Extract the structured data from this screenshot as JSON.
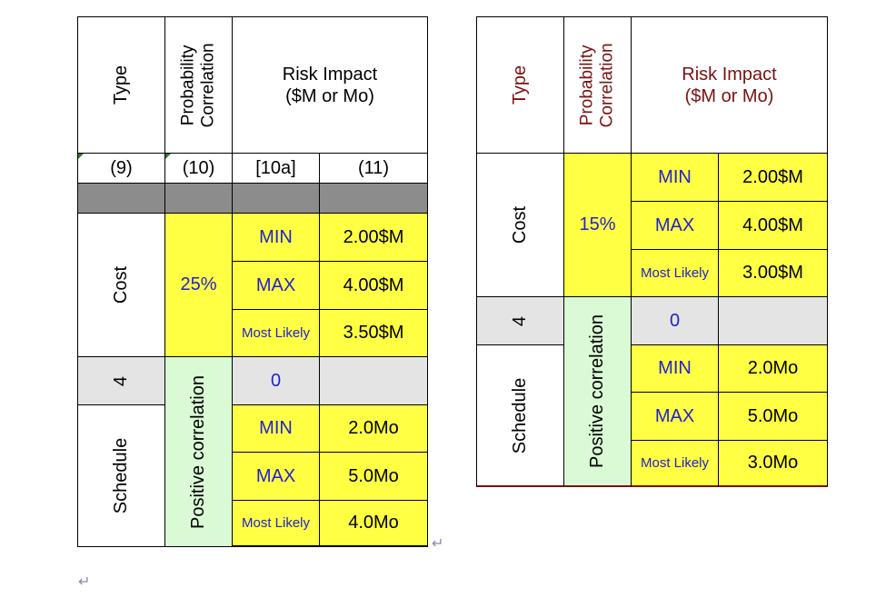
{
  "left_table": {
    "header": {
      "type": "Type",
      "prob_line1": "Probability",
      "prob_line2": "Correlation",
      "risk_line1": "Risk Impact",
      "risk_line2": "($M or Mo)"
    },
    "col_numbers": [
      "(9)",
      "(10)",
      "[10a]",
      "(11)"
    ],
    "cost": {
      "label": "Cost",
      "probability": "25%",
      "rows": [
        {
          "label": "MIN",
          "value": "2.00$M"
        },
        {
          "label": "MAX",
          "value": "4.00$M"
        },
        {
          "label": "Most Likely",
          "value": "3.50$M"
        }
      ]
    },
    "corr": {
      "type": "4",
      "impact": "0"
    },
    "correlation_label": "Positive correlation",
    "schedule": {
      "label": "Schedule",
      "rows": [
        {
          "label": "MIN",
          "value": "2.0Mo"
        },
        {
          "label": "MAX",
          "value": "5.0Mo"
        },
        {
          "label": "Most Likely",
          "value": "4.0Mo"
        }
      ]
    }
  },
  "right_table": {
    "header": {
      "type": "Type",
      "prob_line1": "Probability",
      "prob_line2": "Correlation",
      "risk_line1": "Risk Impact",
      "risk_line2": "($M or Mo)"
    },
    "cost": {
      "label": "Cost",
      "probability": "15%",
      "rows": [
        {
          "label": "MIN",
          "value": "2.00$M"
        },
        {
          "label": "MAX",
          "value": "4.00$M"
        },
        {
          "label": "Most Likely",
          "value": "3.00$M"
        }
      ]
    },
    "corr": {
      "type": "4",
      "impact": "0"
    },
    "correlation_label": "Positive correlation",
    "schedule": {
      "label": "Schedule",
      "rows": [
        {
          "label": "MIN",
          "value": "2.0Mo"
        },
        {
          "label": "MAX",
          "value": "5.0Mo"
        },
        {
          "label": "Most Likely",
          "value": "3.0Mo"
        }
      ]
    }
  },
  "marks": {
    "return_symbol": "↵"
  },
  "colors": {
    "yellow": "#ffff44",
    "green": "#d9fad4",
    "grey": "#e4e4e4",
    "dark": "#8c8c8c",
    "blue_text": "#2222cc",
    "red_text": "#7a1111"
  }
}
